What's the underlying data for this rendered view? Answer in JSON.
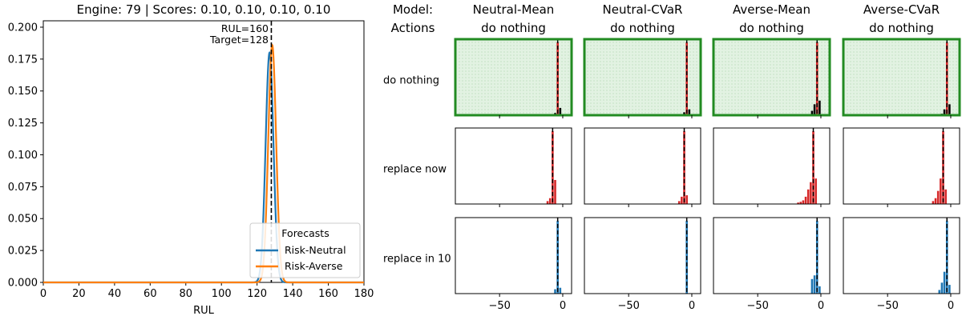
{
  "header": {
    "title": "Engine: 79 | Scores: 0.10, 0.10, 0.10, 0.10",
    "model_label": "Model:",
    "actions_label": "Actions"
  },
  "annotations": {
    "rul_text": "RUL=160",
    "target_text": "Target=128"
  },
  "legend": {
    "title": "Forecasts",
    "items": [
      {
        "label": "Risk-Neutral",
        "color": "#1f77b4"
      },
      {
        "label": "Risk-Averse",
        "color": "#ff7f0e"
      }
    ]
  },
  "grid_labels": {
    "columns": [
      {
        "model": "Neutral-Mean",
        "action": "do nothing"
      },
      {
        "model": "Neutral-CVaR",
        "action": "do nothing"
      },
      {
        "model": "Averse-Mean",
        "action": "do nothing"
      },
      {
        "model": "Averse-CVaR",
        "action": "do nothing"
      }
    ],
    "rows": [
      "do nothing",
      "replace now",
      "replace in 10"
    ]
  },
  "chart_data": [
    {
      "type": "line",
      "title": "Engine: 79 | Scores: 0.10, 0.10, 0.10, 0.10",
      "xlabel": "RUL",
      "ylabel": "",
      "xlim": [
        0,
        180
      ],
      "ylim": [
        0,
        0.205
      ],
      "xticks": [
        0,
        20,
        40,
        60,
        80,
        100,
        120,
        140,
        160,
        180
      ],
      "yticks": [
        0.0,
        0.025,
        0.05,
        0.075,
        0.1,
        0.125,
        0.15,
        0.175,
        0.2
      ],
      "ytick_labels": [
        "0.000",
        "0.025",
        "0.050",
        "0.075",
        "0.100",
        "0.125",
        "0.150",
        "0.175",
        "0.200"
      ],
      "target_line_x": 128,
      "series": [
        {
          "name": "Risk-Neutral",
          "color": "#1f77b4",
          "mu": 127,
          "sigma": 2.2,
          "peak": 0.18
        },
        {
          "name": "Risk-Averse",
          "color": "#ff7f0e",
          "mu": 128.5,
          "sigma": 2.2,
          "peak": 0.186
        }
      ],
      "legend_placement": "lower-right"
    },
    {
      "type": "bar",
      "layout": "grid 3 rows x 4 columns",
      "xlim": [
        -85,
        7
      ],
      "xticks": [
        -50,
        0
      ],
      "xtick_labels": [
        "−50",
        "0"
      ],
      "bin_width": 2,
      "row_colors": [
        "#d62728",
        "#d62728",
        "#1f77b4"
      ],
      "first_row_bar_color": "#000000",
      "selected_row": 0,
      "selected_border_color": "#228b22",
      "selected_fill_color": "#e2f2e2",
      "panels": [
        [
          {
            "dashed_x": -4,
            "bars": [
              {
                "x": -6,
                "v": 0.03
              },
              {
                "x": -4,
                "v": 1.0
              },
              {
                "x": -2,
                "v": 0.1
              }
            ]
          },
          {
            "dashed_x": -4,
            "bars": [
              {
                "x": -6,
                "v": 0.04
              },
              {
                "x": -4,
                "v": 1.0
              },
              {
                "x": -2,
                "v": 0.08
              }
            ]
          },
          {
            "dashed_x": -3,
            "bars": [
              {
                "x": -7,
                "v": 0.06
              },
              {
                "x": -5,
                "v": 0.15
              },
              {
                "x": -3,
                "v": 1.0
              },
              {
                "x": -1,
                "v": 0.2
              }
            ]
          },
          {
            "dashed_x": -3,
            "bars": [
              {
                "x": -7,
                "v": 0.02
              },
              {
                "x": -5,
                "v": 0.08
              },
              {
                "x": -3,
                "v": 1.0
              },
              {
                "x": -1,
                "v": 0.15
              }
            ]
          }
        ],
        [
          {
            "dashed_x": -8,
            "bars": [
              {
                "x": -12,
                "v": 0.04
              },
              {
                "x": -10,
                "v": 0.08
              },
              {
                "x": -8,
                "v": 1.0
              },
              {
                "x": -6,
                "v": 0.33
              }
            ]
          },
          {
            "dashed_x": -6,
            "bars": [
              {
                "x": -10,
                "v": 0.04
              },
              {
                "x": -8,
                "v": 0.1
              },
              {
                "x": -6,
                "v": 1.0
              },
              {
                "x": -4,
                "v": 0.12
              }
            ]
          },
          {
            "dashed_x": -6,
            "bars": [
              {
                "x": -18,
                "v": 0.02
              },
              {
                "x": -16,
                "v": 0.03
              },
              {
                "x": -14,
                "v": 0.05
              },
              {
                "x": -12,
                "v": 0.1
              },
              {
                "x": -10,
                "v": 0.2
              },
              {
                "x": -8,
                "v": 0.3
              },
              {
                "x": -6,
                "v": 1.0
              },
              {
                "x": -4,
                "v": 0.35
              }
            ]
          },
          {
            "dashed_x": -6,
            "bars": [
              {
                "x": -14,
                "v": 0.04
              },
              {
                "x": -12,
                "v": 0.08
              },
              {
                "x": -10,
                "v": 0.18
              },
              {
                "x": -8,
                "v": 0.35
              },
              {
                "x": -6,
                "v": 1.0
              },
              {
                "x": -4,
                "v": 0.2
              }
            ]
          }
        ],
        [
          {
            "dashed_x": -4,
            "bars": [
              {
                "x": -6,
                "v": 0.06
              },
              {
                "x": -4,
                "v": 1.0
              },
              {
                "x": -2,
                "v": 0.08
              }
            ]
          },
          {
            "dashed_x": -4,
            "bars": [
              {
                "x": -4,
                "v": 1.0
              }
            ]
          },
          {
            "dashed_x": -3,
            "bars": [
              {
                "x": -7,
                "v": 0.2
              },
              {
                "x": -5,
                "v": 0.25
              },
              {
                "x": -3,
                "v": 1.0
              },
              {
                "x": -1,
                "v": 0.1
              }
            ]
          },
          {
            "dashed_x": -3,
            "bars": [
              {
                "x": -9,
                "v": 0.05
              },
              {
                "x": -7,
                "v": 0.15
              },
              {
                "x": -5,
                "v": 0.3
              },
              {
                "x": -3,
                "v": 1.0
              },
              {
                "x": -1,
                "v": 0.12
              }
            ]
          }
        ]
      ]
    }
  ]
}
